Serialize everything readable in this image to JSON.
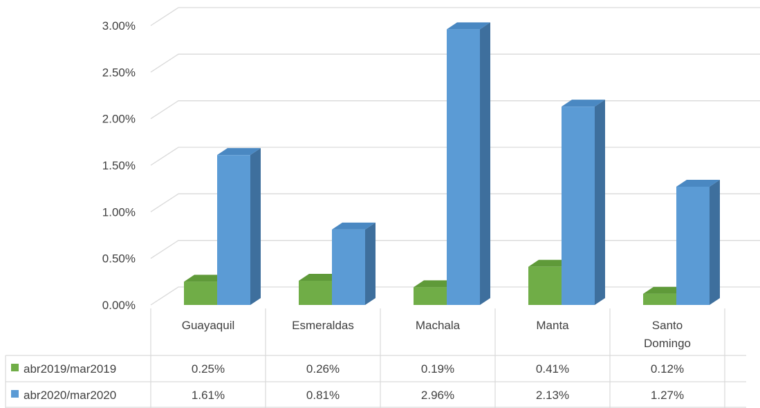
{
  "chart_data": {
    "type": "bar",
    "style": "3d-clustered-column-with-data-table",
    "categories": [
      "Guayaquil",
      "Esmeraldas",
      "Machala",
      "Manta",
      "Santo Domingo"
    ],
    "category_lines": [
      [
        "Guayaquil"
      ],
      [
        "Esmeraldas"
      ],
      [
        "Machala"
      ],
      [
        "Manta"
      ],
      [
        "Santo",
        "Domingo"
      ]
    ],
    "series": [
      {
        "name": "abr2019/mar2019",
        "values": [
          0.25,
          0.26,
          0.19,
          0.41,
          0.12
        ],
        "labels": [
          "0.25%",
          "0.26%",
          "0.19%",
          "0.41%",
          "0.12%"
        ],
        "color": "#70ad47",
        "side_color": "#4e7a31",
        "top_color": "#5f9a39"
      },
      {
        "name": "abr2020/mar2020",
        "values": [
          1.61,
          0.81,
          2.96,
          2.13,
          1.27
        ],
        "labels": [
          "1.61%",
          "0.81%",
          "2.96%",
          "2.13%",
          "1.27%"
        ],
        "color": "#5b9bd5",
        "side_color": "#3e6f9d",
        "top_color": "#4a88c2"
      }
    ],
    "y_ticks": [
      "0.00%",
      "0.50%",
      "1.00%",
      "1.50%",
      "2.00%",
      "2.50%",
      "3.00%"
    ],
    "ylim": [
      0,
      3.0
    ],
    "y_unit": "%",
    "grid": true,
    "legend": "data-table"
  }
}
